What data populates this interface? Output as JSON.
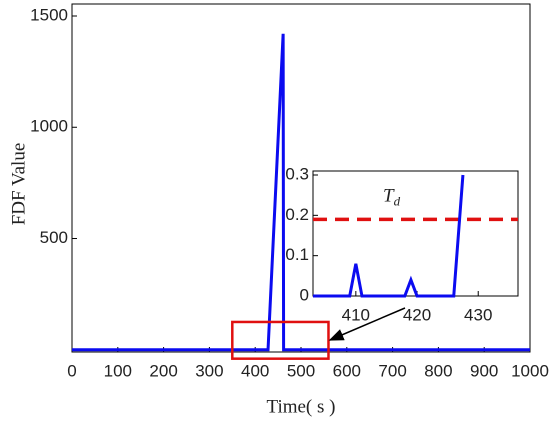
{
  "chart_data": [
    {
      "type": "line",
      "xlabel": "Time( s )",
      "ylabel": "FDF Value",
      "x": [
        0,
        428,
        461,
        462,
        1000
      ],
      "series": [
        {
          "color": "#0b0bf0",
          "values": [
            0,
            0,
            1420,
            0,
            0
          ]
        }
      ],
      "xlim": [
        0,
        1000
      ],
      "ylim": [
        -10,
        1500
      ],
      "xticks": [
        0,
        100,
        200,
        300,
        400,
        500,
        600,
        700,
        800,
        900,
        1000
      ],
      "yticks": [
        500,
        1000,
        1500
      ],
      "zoom_box": {
        "x": [
          350,
          560
        ],
        "y": [
          -40,
          125
        ],
        "color": "#e01010"
      }
    },
    {
      "type": "line",
      "x": [
        403,
        409,
        410,
        411,
        418,
        419,
        420,
        426,
        427.5
      ],
      "series": [
        {
          "color": "#0b0bf0",
          "values": [
            0,
            0,
            0.08,
            0,
            0,
            0.04,
            0,
            0,
            0.3
          ]
        }
      ],
      "xlim": [
        403,
        436.5
      ],
      "ylim": [
        0,
        0.3
      ],
      "xticks": [
        410,
        420,
        430
      ],
      "yticks": [
        0,
        0.1,
        0.2,
        0.3
      ],
      "threshold": {
        "value": 0.19,
        "label": "Td",
        "color": "#e01010"
      }
    }
  ]
}
